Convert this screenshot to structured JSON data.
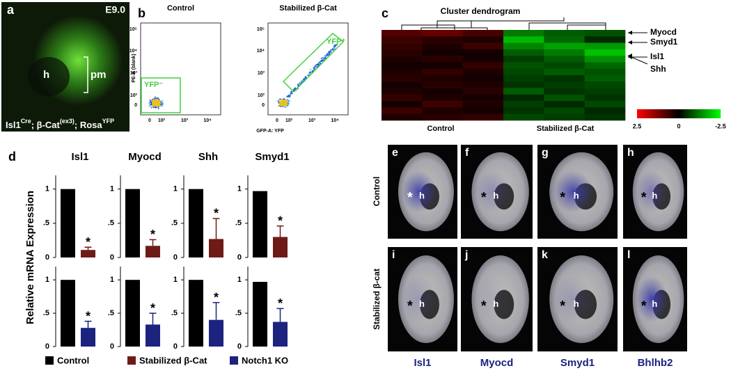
{
  "panel_a": {
    "label": "a",
    "stage": "E9.0",
    "heart": "h",
    "region": "pm",
    "genotype": [
      "Isl1",
      "Cre",
      "; β-Cat",
      "(ex3)",
      "; Rosa",
      "YFP"
    ]
  },
  "panel_b": {
    "label": "b",
    "titles": [
      "Control",
      "Stabilized β-Cat"
    ],
    "ylabel": "PE-A (blank)",
    "xlabel": "GFP-A: YFP",
    "yticks": [
      "10⁵",
      "10⁴",
      "10³",
      "10²",
      "0"
    ],
    "xticks": [
      "0",
      "10²",
      "10³",
      "10⁴"
    ],
    "gates": [
      "YFP⁻",
      "YFP⁺"
    ]
  },
  "panel_c": {
    "label": "c",
    "title": "Cluster dendrogram",
    "genes": [
      "Myocd",
      "Smyd1",
      "Isl1",
      "Shh"
    ],
    "groups": [
      "Control",
      "Stabilized β-Cat"
    ],
    "colorbar_ticks": [
      2.5,
      0,
      -2.5
    ],
    "heatmap": [
      [
        0.8,
        1.0,
        0.7,
        -1.2,
        -0.9,
        -0.8
      ],
      [
        0.6,
        0.4,
        0.3,
        -1.8,
        -1.0,
        -0.4
      ],
      [
        0.5,
        0.3,
        0.6,
        -1.3,
        -1.6,
        -1.5
      ],
      [
        0.4,
        0.2,
        0.2,
        -0.9,
        -1.2,
        -1.9
      ],
      [
        0.3,
        0.4,
        0.2,
        -0.6,
        -0.9,
        -1.4
      ],
      [
        0.2,
        0.2,
        0.5,
        -0.8,
        -0.7,
        -1.0
      ],
      [
        0.3,
        0.5,
        0.3,
        -0.7,
        -0.9,
        -0.8
      ],
      [
        0.4,
        0.3,
        0.2,
        -0.6,
        -0.5,
        -0.9
      ],
      [
        0.2,
        0.4,
        0.3,
        -0.5,
        -0.6,
        -0.7
      ],
      [
        0.3,
        0.2,
        0.4,
        -0.9,
        -0.5,
        -0.6
      ],
      [
        0.5,
        0.3,
        0.2,
        -0.4,
        -0.8,
        -0.5
      ],
      [
        0.2,
        0.6,
        0.3,
        -0.6,
        -0.4,
        -0.7
      ],
      [
        0.6,
        0.3,
        0.2,
        -0.5,
        -0.7,
        -0.4
      ],
      [
        0.3,
        0.4,
        0.5,
        -0.7,
        -0.6,
        -0.5
      ]
    ]
  },
  "chart_data": {
    "type": "bar",
    "label": "d",
    "ylabel": "Relative mRNA Expression",
    "panels": [
      "Isl1",
      "Myocd",
      "Shh",
      "Smyd1"
    ],
    "ylim": [
      0,
      1.2
    ],
    "yticks": [
      0,
      {
        "value": 0.5,
        "label": ".5"
      },
      1
    ],
    "annotation": "*",
    "series": [
      {
        "name": "Control",
        "color": "#000000",
        "values": [
          1,
          1,
          1,
          0.97,
          1,
          1,
          1,
          0.97
        ]
      },
      {
        "name": "Stabilized β-Cat",
        "color": "#6e1b17",
        "values": [
          0.11,
          0.17,
          0.27,
          0.3
        ],
        "errors": [
          0.04,
          0.09,
          0.3,
          0.16
        ]
      },
      {
        "name": "Notch1 KO",
        "color": "#1b237f",
        "values": [
          0.28,
          0.33,
          0.4,
          0.37
        ],
        "errors": [
          0.1,
          0.17,
          0.26,
          0.2
        ]
      }
    ]
  },
  "panel_e_l": {
    "rows": [
      "Control",
      "Stabilized β-cat"
    ],
    "columns": [
      "Isl1",
      "Myocd",
      "Smyd1",
      "Bhlhb2"
    ],
    "images": [
      {
        "label": "e",
        "star": "*",
        "heart": "h"
      },
      {
        "label": "f",
        "star": "*",
        "heart": "h"
      },
      {
        "label": "g",
        "star": "*",
        "heart": "h"
      },
      {
        "label": "h",
        "star": "*",
        "heart": "h"
      },
      {
        "label": "i",
        "star": "*",
        "heart": "h"
      },
      {
        "label": "j",
        "star": "*",
        "heart": "h"
      },
      {
        "label": "k",
        "star": "*",
        "heart": "h"
      },
      {
        "label": "l",
        "star": "*",
        "heart": "h"
      }
    ]
  }
}
